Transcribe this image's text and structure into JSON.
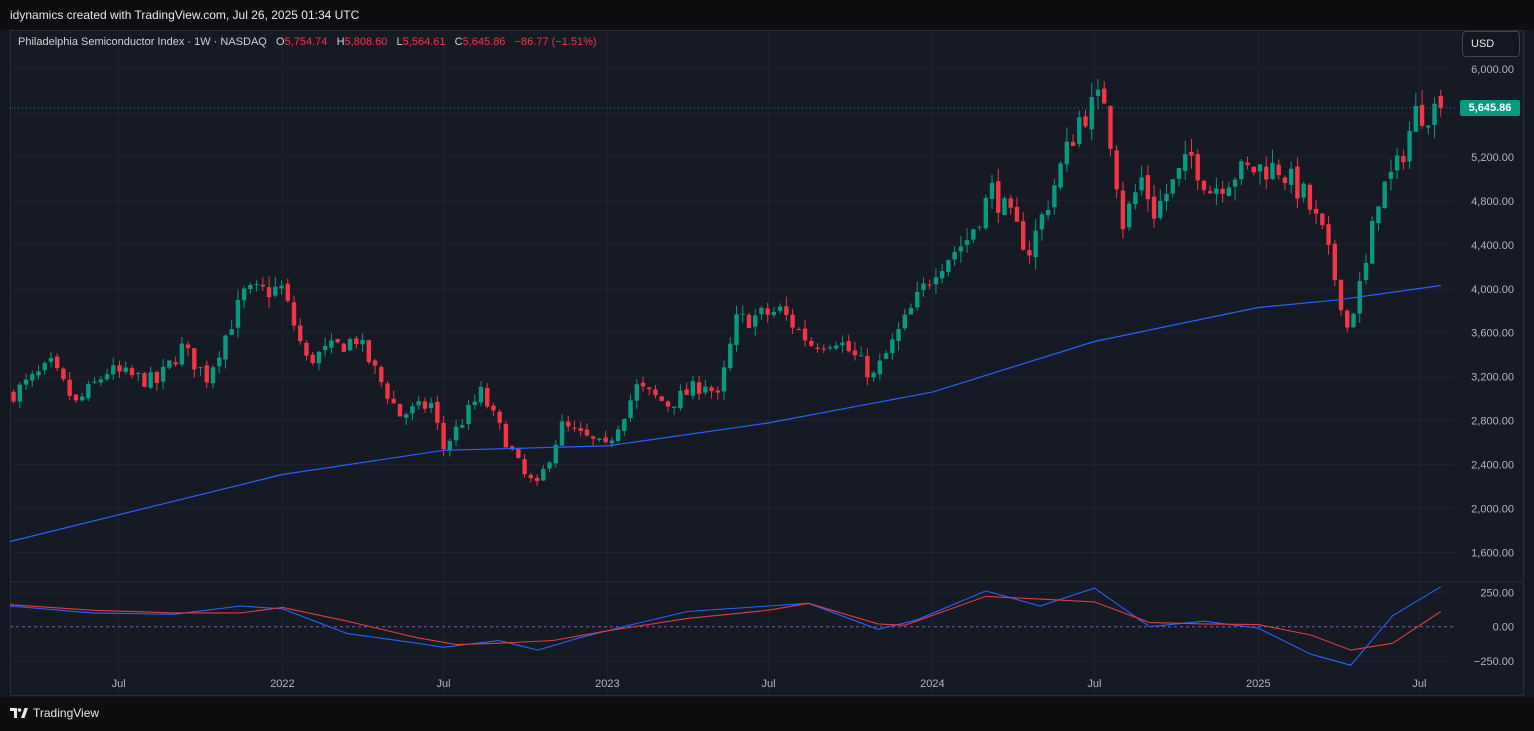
{
  "header": {
    "caption": "idynamics created with TradingView.com, Jul 26, 2025 01:34 UTC"
  },
  "legend": {
    "symbol": "Philadelphia Semiconductor Index · 1W · NASDAQ",
    "o_label": "O",
    "o_value": "5,754.74",
    "h_label": "H",
    "h_value": "5,808.60",
    "l_label": "L",
    "l_value": "5,564.61",
    "c_label": "C",
    "c_value": "5,645.86",
    "change": "−86.77 (−1.51%)"
  },
  "currency_button": "USD",
  "last_price_label": "5,645.86",
  "footer": {
    "brand": "TradingView"
  },
  "colors": {
    "up": "#089981",
    "down": "#f23645",
    "ma": "#2962ff",
    "osc_fast": "#2962ff",
    "osc_slow": "#e03c3c"
  },
  "chart_data": [
    {
      "type": "candlestick",
      "title": "Philadelphia Semiconductor Index · 1W · NASDAQ",
      "y_ticks": [
        "6,000.00",
        "5,200.00",
        "4,800.00",
        "4,400.00",
        "4,000.00",
        "3,600.00",
        "3,200.00",
        "2,800.00",
        "2,400.00",
        "2,000.00",
        "1,600.00"
      ],
      "y_tick_values": [
        6000,
        5200,
        4800,
        4400,
        4000,
        3600,
        3200,
        2800,
        2400,
        2000,
        1600
      ],
      "ylim": [
        1350,
        6100
      ],
      "x_ticks": [
        "Jul",
        "2022",
        "Jul",
        "2023",
        "Jul",
        "2024",
        "Jul",
        "2025",
        "Jul"
      ],
      "x_tick_dates": [
        "2021-07-01",
        "2022-01-01",
        "2022-07-01",
        "2023-01-01",
        "2023-07-01",
        "2024-01-01",
        "2024-07-01",
        "2025-01-01",
        "2025-07-01"
      ],
      "x_range": [
        "2021-03-01",
        "2025-08-10"
      ],
      "last_price": 5645.86,
      "keypoints": [
        [
          "2021-03-05",
          3050
        ],
        [
          "2021-04-16",
          3300
        ],
        [
          "2021-05-14",
          2950
        ],
        [
          "2021-06-18",
          3250
        ],
        [
          "2021-08-13",
          3150
        ],
        [
          "2021-09-10",
          3460
        ],
        [
          "2021-10-08",
          3200
        ],
        [
          "2021-11-19",
          3950
        ],
        [
          "2021-12-31",
          4000
        ],
        [
          "2022-01-28",
          3350
        ],
        [
          "2022-03-25",
          3550
        ],
        [
          "2022-05-13",
          2850
        ],
        [
          "2022-06-17",
          2950
        ],
        [
          "2022-07-01",
          2550
        ],
        [
          "2022-08-12",
          3050
        ],
        [
          "2022-09-30",
          2300
        ],
        [
          "2022-10-14",
          2200
        ],
        [
          "2022-11-11",
          2750
        ],
        [
          "2022-12-30",
          2550
        ],
        [
          "2023-02-03",
          3100
        ],
        [
          "2023-03-10",
          2950
        ],
        [
          "2023-04-21",
          3150
        ],
        [
          "2023-05-05",
          3000
        ],
        [
          "2023-05-26",
          3700
        ],
        [
          "2023-07-14",
          3800
        ],
        [
          "2023-08-18",
          3500
        ],
        [
          "2023-09-15",
          3550
        ],
        [
          "2023-10-27",
          3200
        ],
        [
          "2023-12-15",
          3900
        ],
        [
          "2024-01-05",
          4200
        ],
        [
          "2024-02-09",
          4450
        ],
        [
          "2024-03-08",
          4900
        ],
        [
          "2024-04-19",
          4350
        ],
        [
          "2024-05-24",
          5100
        ],
        [
          "2024-06-14",
          5550
        ],
        [
          "2024-07-12",
          5750
        ],
        [
          "2024-07-26",
          5000
        ],
        [
          "2024-08-02",
          4600
        ],
        [
          "2024-08-23",
          5000
        ],
        [
          "2024-09-06",
          4700
        ],
        [
          "2024-10-18",
          5200
        ],
        [
          "2024-11-08",
          4900
        ],
        [
          "2024-12-06",
          5050
        ],
        [
          "2025-01-03",
          5100
        ],
        [
          "2025-01-24",
          5100
        ],
        [
          "2025-02-21",
          4850
        ],
        [
          "2025-03-14",
          4500
        ],
        [
          "2025-04-04",
          3900
        ],
        [
          "2025-04-11",
          3650
        ],
        [
          "2025-05-02",
          4200
        ],
        [
          "2025-05-16",
          4850
        ],
        [
          "2025-06-06",
          5100
        ],
        [
          "2025-06-27",
          5600
        ],
        [
          "2025-07-25",
          5645.86
        ]
      ],
      "moving_average": [
        [
          "2021-03-01",
          1700
        ],
        [
          "2022-01-01",
          2310
        ],
        [
          "2022-07-01",
          2530
        ],
        [
          "2023-01-01",
          2570
        ],
        [
          "2023-07-01",
          2780
        ],
        [
          "2024-01-01",
          3060
        ],
        [
          "2024-07-01",
          3520
        ],
        [
          "2025-01-01",
          3830
        ],
        [
          "2025-04-01",
          3900
        ],
        [
          "2025-07-25",
          4030
        ]
      ]
    },
    {
      "type": "line",
      "title": "",
      "y_ticks": [
        "250.00",
        "0.00",
        "−250.00"
      ],
      "y_tick_values": [
        250,
        0,
        -250
      ],
      "ylim": [
        -300,
        310
      ],
      "series": [
        {
          "values": [
            [
              "2021-03-01",
              150
            ],
            [
              "2021-06-01",
              100
            ],
            [
              "2021-09-01",
              90
            ],
            [
              "2021-11-15",
              150
            ],
            [
              "2022-01-01",
              130
            ],
            [
              "2022-03-15",
              -50
            ],
            [
              "2022-06-01",
              -120
            ],
            [
              "2022-07-01",
              -150
            ],
            [
              "2022-09-01",
              -100
            ],
            [
              "2022-10-15",
              -170
            ],
            [
              "2022-12-01",
              -80
            ],
            [
              "2023-02-01",
              20
            ],
            [
              "2023-04-01",
              110
            ],
            [
              "2023-07-01",
              150
            ],
            [
              "2023-08-15",
              170
            ],
            [
              "2023-11-01",
              -20
            ],
            [
              "2023-12-15",
              50
            ],
            [
              "2024-03-01",
              260
            ],
            [
              "2024-05-01",
              150
            ],
            [
              "2024-07-01",
              280
            ],
            [
              "2024-09-01",
              0
            ],
            [
              "2024-11-01",
              40
            ],
            [
              "2025-01-01",
              -10
            ],
            [
              "2025-03-01",
              -200
            ],
            [
              "2025-04-15",
              -280
            ],
            [
              "2025-06-01",
              80
            ],
            [
              "2025-07-25",
              290
            ]
          ]
        },
        {
          "values": [
            [
              "2021-03-01",
              160
            ],
            [
              "2021-06-01",
              120
            ],
            [
              "2021-09-01",
              100
            ],
            [
              "2021-11-15",
              100
            ],
            [
              "2022-01-01",
              140
            ],
            [
              "2022-03-15",
              40
            ],
            [
              "2022-06-01",
              -80
            ],
            [
              "2022-07-15",
              -130
            ],
            [
              "2022-09-01",
              -120
            ],
            [
              "2022-11-01",
              -100
            ],
            [
              "2023-01-01",
              -30
            ],
            [
              "2023-04-01",
              60
            ],
            [
              "2023-07-01",
              120
            ],
            [
              "2023-08-15",
              170
            ],
            [
              "2023-11-01",
              20
            ],
            [
              "2023-12-01",
              10
            ],
            [
              "2024-03-01",
              220
            ],
            [
              "2024-05-01",
              200
            ],
            [
              "2024-07-01",
              180
            ],
            [
              "2024-09-01",
              30
            ],
            [
              "2024-11-01",
              20
            ],
            [
              "2025-01-01",
              15
            ],
            [
              "2025-03-01",
              -60
            ],
            [
              "2025-04-15",
              -170
            ],
            [
              "2025-06-01",
              -120
            ],
            [
              "2025-07-25",
              110
            ]
          ]
        }
      ]
    }
  ]
}
